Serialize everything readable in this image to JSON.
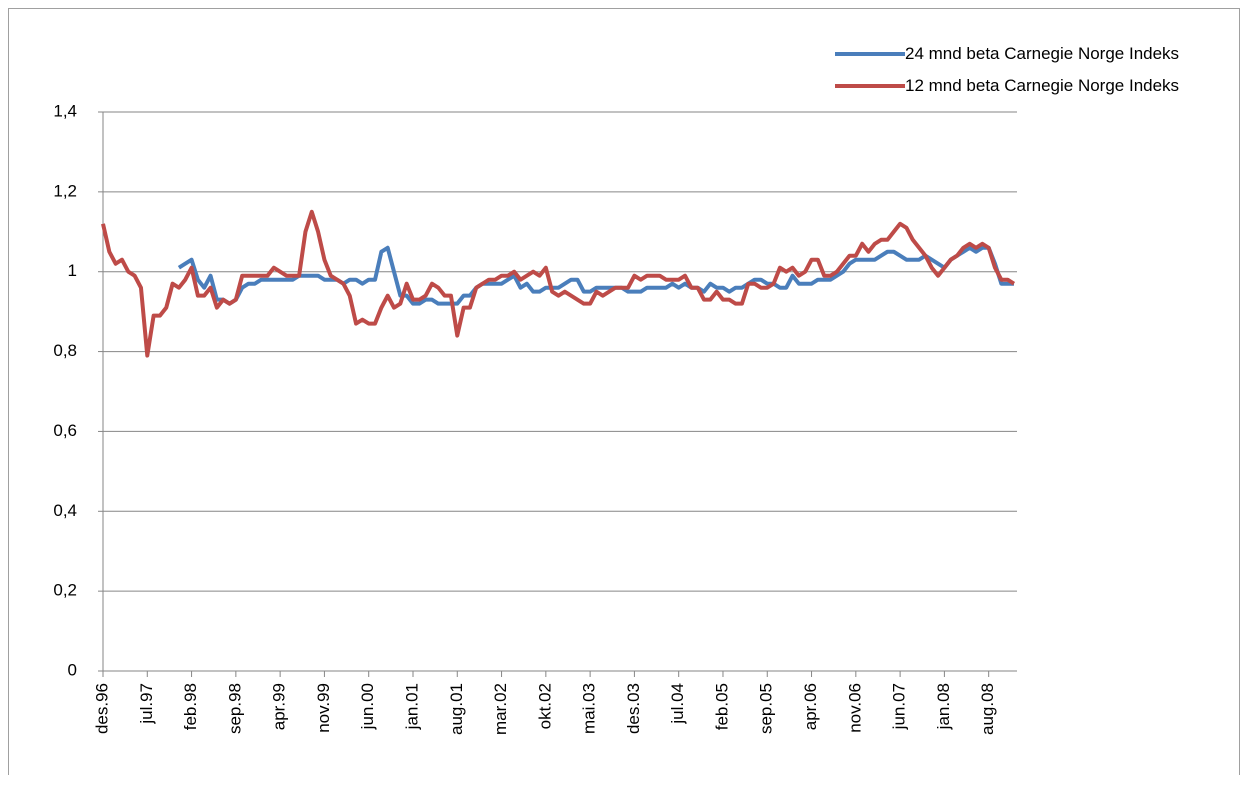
{
  "chart_data": {
    "type": "line",
    "categories": [
      "des.96",
      null,
      null,
      null,
      null,
      null,
      null,
      "jul.97",
      null,
      null,
      null,
      null,
      null,
      null,
      "feb.98",
      null,
      null,
      null,
      null,
      null,
      null,
      "sep.98",
      null,
      null,
      null,
      null,
      null,
      null,
      "apr.99",
      null,
      null,
      null,
      null,
      null,
      null,
      "nov.99",
      null,
      null,
      null,
      null,
      null,
      null,
      "jun.00",
      null,
      null,
      null,
      null,
      null,
      null,
      "jan.01",
      null,
      null,
      null,
      null,
      null,
      null,
      "aug.01",
      null,
      null,
      null,
      null,
      null,
      null,
      "mar.02",
      null,
      null,
      null,
      null,
      null,
      null,
      "okt.02",
      null,
      null,
      null,
      null,
      null,
      null,
      "mai.03",
      null,
      null,
      null,
      null,
      null,
      null,
      "des.03",
      null,
      null,
      null,
      null,
      null,
      null,
      "jul.04",
      null,
      null,
      null,
      null,
      null,
      null,
      "feb.05",
      null,
      null,
      null,
      null,
      null,
      null,
      "sep.05",
      null,
      null,
      null,
      null,
      null,
      null,
      "apr.06",
      null,
      null,
      null,
      null,
      null,
      null,
      "nov.06",
      null,
      null,
      null,
      null,
      null,
      null,
      "jun.07",
      null,
      null,
      null,
      null,
      null,
      null,
      "jan.08",
      null,
      null,
      null,
      null,
      null,
      null,
      "aug.08",
      null,
      null,
      null,
      null
    ],
    "series": [
      {
        "name": "24 mnd beta Carnegie Norge Indeks",
        "color": "#4a7ebb",
        "values": [
          null,
          null,
          null,
          null,
          null,
          null,
          null,
          null,
          null,
          null,
          null,
          null,
          1.01,
          1.02,
          1.03,
          0.98,
          0.96,
          0.99,
          0.93,
          0.93,
          0.92,
          0.93,
          0.96,
          0.97,
          0.97,
          0.98,
          0.98,
          0.98,
          0.98,
          0.98,
          0.98,
          0.99,
          0.99,
          0.99,
          0.99,
          0.98,
          0.98,
          0.98,
          0.97,
          0.98,
          0.98,
          0.97,
          0.98,
          0.98,
          1.05,
          1.06,
          1.0,
          0.94,
          0.94,
          0.92,
          0.92,
          0.93,
          0.93,
          0.92,
          0.92,
          0.92,
          0.92,
          0.94,
          0.94,
          0.96,
          0.97,
          0.97,
          0.97,
          0.97,
          0.98,
          0.99,
          0.96,
          0.97,
          0.95,
          0.95,
          0.96,
          0.96,
          0.96,
          0.97,
          0.98,
          0.98,
          0.95,
          0.95,
          0.96,
          0.96,
          0.96,
          0.96,
          0.96,
          0.95,
          0.95,
          0.95,
          0.96,
          0.96,
          0.96,
          0.96,
          0.97,
          0.96,
          0.97,
          0.96,
          0.96,
          0.95,
          0.97,
          0.96,
          0.96,
          0.95,
          0.96,
          0.96,
          0.97,
          0.98,
          0.98,
          0.97,
          0.97,
          0.96,
          0.96,
          0.99,
          0.97,
          0.97,
          0.97,
          0.98,
          0.98,
          0.98,
          0.99,
          1.0,
          1.02,
          1.03,
          1.03,
          1.03,
          1.03,
          1.04,
          1.05,
          1.05,
          1.04,
          1.03,
          1.03,
          1.03,
          1.04,
          1.03,
          1.02,
          1.01,
          1.03,
          1.04,
          1.05,
          1.06,
          1.05,
          1.06,
          1.06,
          1.02,
          0.97,
          0.97,
          0.97
        ]
      },
      {
        "name": "12 mnd beta Carnegie Norge Indeks",
        "color": "#be4b48",
        "values": [
          1.12,
          1.05,
          1.02,
          1.03,
          1.0,
          0.99,
          0.96,
          0.79,
          0.89,
          0.89,
          0.91,
          0.97,
          0.96,
          0.98,
          1.01,
          0.94,
          0.94,
          0.96,
          0.91,
          0.93,
          0.92,
          0.93,
          0.99,
          0.99,
          0.99,
          0.99,
          0.99,
          1.01,
          1.0,
          0.99,
          0.99,
          0.99,
          1.1,
          1.15,
          1.1,
          1.03,
          0.99,
          0.98,
          0.97,
          0.94,
          0.87,
          0.88,
          0.87,
          0.87,
          0.91,
          0.94,
          0.91,
          0.92,
          0.97,
          0.93,
          0.93,
          0.94,
          0.97,
          0.96,
          0.94,
          0.94,
          0.84,
          0.91,
          0.91,
          0.96,
          0.97,
          0.98,
          0.98,
          0.99,
          0.99,
          1.0,
          0.98,
          0.99,
          1.0,
          0.99,
          1.01,
          0.95,
          0.94,
          0.95,
          0.94,
          0.93,
          0.92,
          0.92,
          0.95,
          0.94,
          0.95,
          0.96,
          0.96,
          0.96,
          0.99,
          0.98,
          0.99,
          0.99,
          0.99,
          0.98,
          0.98,
          0.98,
          0.99,
          0.96,
          0.96,
          0.93,
          0.93,
          0.95,
          0.93,
          0.93,
          0.92,
          0.92,
          0.97,
          0.97,
          0.96,
          0.96,
          0.97,
          1.01,
          1.0,
          1.01,
          0.99,
          1.0,
          1.03,
          1.03,
          0.99,
          0.99,
          1.0,
          1.02,
          1.04,
          1.04,
          1.07,
          1.05,
          1.07,
          1.08,
          1.08,
          1.1,
          1.12,
          1.11,
          1.08,
          1.06,
          1.04,
          1.01,
          0.99,
          1.01,
          1.03,
          1.04,
          1.06,
          1.07,
          1.06,
          1.07,
          1.06,
          1.01,
          0.98,
          0.98,
          0.97
        ]
      }
    ],
    "ylim": [
      0,
      1.4
    ],
    "yticks": [
      0,
      {
        "value": 0.2,
        "label": "0,2"
      },
      {
        "value": 0.4,
        "label": "0,4"
      },
      {
        "value": 0.6,
        "label": "0,6"
      },
      {
        "value": 0.8,
        "label": "0,8"
      },
      1,
      {
        "value": 1.2,
        "label": "1,2"
      },
      {
        "value": 1.4,
        "label": "1,4"
      }
    ],
    "grid": true
  }
}
